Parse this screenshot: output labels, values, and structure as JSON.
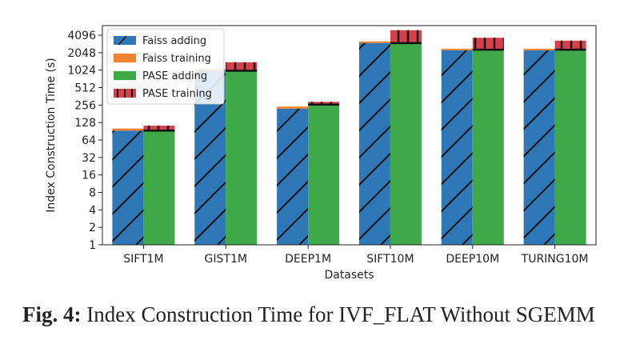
{
  "chart_data": {
    "type": "bar",
    "xlabel": "Datasets",
    "ylabel": "Index Construction Time (s)",
    "yscale": "log2",
    "ylim": [
      1,
      6000
    ],
    "yticks": [
      "1",
      "2",
      "4",
      "8",
      "16",
      "32",
      "64",
      "128",
      "256",
      "512",
      "1024",
      "2048",
      "4096"
    ],
    "ytick_values": [
      1,
      2,
      4,
      8,
      16,
      32,
      64,
      128,
      256,
      512,
      1024,
      2048,
      4096
    ],
    "categories": [
      "SIFT1M",
      "GIST1M",
      "DEEP1M",
      "SIFT10M",
      "DEEP10M",
      "TURING10M"
    ],
    "series": [
      {
        "name": "Faiss adding",
        "color": "#2f78b8",
        "hatch": "diagonal",
        "group": "Faiss",
        "values": [
          92,
          1000,
          220,
          3000,
          2250,
          2250
        ]
      },
      {
        "name": "Faiss training",
        "color": "#f08232",
        "group": "Faiss",
        "values": [
          8,
          70,
          20,
          200,
          150,
          150
        ]
      },
      {
        "name": "PASE adding",
        "color": "#3fa94a",
        "group": "PASE",
        "values": [
          92,
          1000,
          260,
          3000,
          2300,
          2300
        ]
      },
      {
        "name": "PASE training",
        "color": "#d83f4a",
        "hatch": "vertical",
        "group": "PASE",
        "values": [
          20,
          400,
          30,
          2000,
          1400,
          1000
        ]
      }
    ],
    "legend_position": "top-left",
    "grid": false
  },
  "caption": {
    "label": "Fig. 4:",
    "text": "Index Construction Time for IVF_FLAT Without SGEMM"
  }
}
